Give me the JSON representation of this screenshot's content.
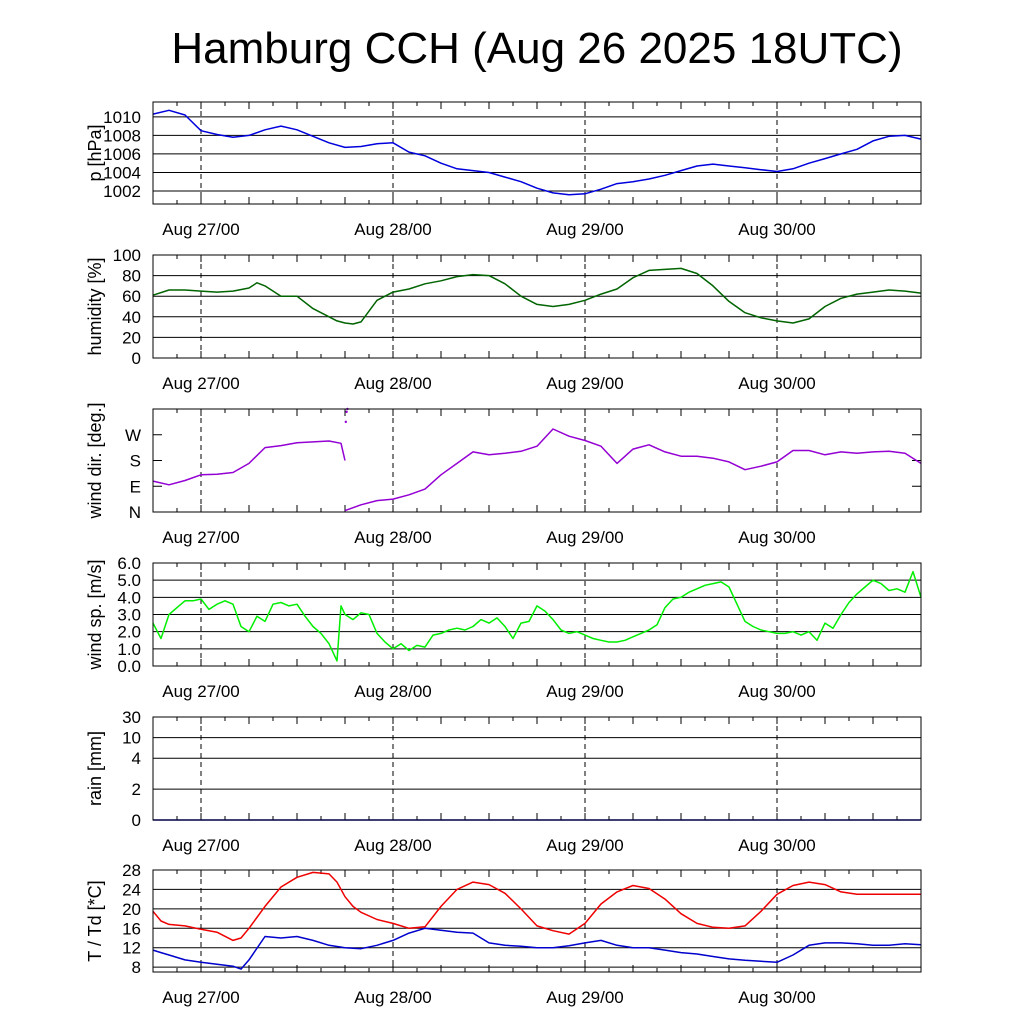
{
  "title": "Hamburg CCH (Aug 26 2025 18UTC)",
  "colors": {
    "pressure": "#0000dd",
    "humidity": "#006400",
    "wind_dir": "#9400d3",
    "wind_speed": "#00ee00",
    "rain": "#0000cc",
    "temperature": "#ee0000",
    "dewpoint": "#0000cc"
  },
  "chart_data": [
    {
      "type": "line",
      "ylabel": "p [hPa]",
      "ylim": [
        1000.6,
        1011.6
      ],
      "yticks": [
        "1002",
        "1004",
        "1006",
        "1008",
        "1010"
      ],
      "x_axis": {
        "start": "Aug 26 18UTC",
        "end": "Aug 30 18UTC",
        "unit": "hours",
        "range": [
          0,
          96
        ]
      },
      "xticks": [
        "Aug 27/00",
        "Aug 28/00",
        "Aug 29/00",
        "Aug 30/00"
      ],
      "grid": "horizontal solid, vertical dashed at midnight",
      "series": [
        {
          "x": [
            0,
            2,
            4,
            6,
            8,
            10,
            12,
            14,
            16,
            18,
            20,
            22,
            24,
            26,
            28,
            30,
            32,
            34,
            36,
            38,
            40,
            42,
            44,
            46,
            48,
            50,
            52,
            54,
            56,
            58,
            60,
            62,
            64,
            66,
            68,
            70,
            72,
            74,
            76,
            78,
            80,
            82,
            84,
            86,
            88,
            90,
            92,
            94,
            96
          ],
          "values": [
            1010.3,
            1010.7,
            1010.2,
            1008.5,
            1008.1,
            1007.8,
            1008.0,
            1008.6,
            1009.0,
            1008.6,
            1007.9,
            1007.2,
            1006.7,
            1006.8,
            1007.1,
            1007.2,
            1006.2,
            1005.8,
            1005.0,
            1004.4,
            1004.2,
            1004.0,
            1003.5,
            1003.0,
            1002.3,
            1001.8,
            1001.6,
            1001.7,
            1002.2,
            1002.8,
            1003.0,
            1003.3,
            1003.7,
            1004.2,
            1004.7,
            1004.9,
            1004.7,
            1004.5,
            1004.3,
            1004.1,
            1004.4,
            1005.0,
            1005.5,
            1006.0,
            1006.5,
            1007.4,
            1007.9,
            1008.0,
            1007.6
          ]
        }
      ]
    },
    {
      "type": "line",
      "ylabel": "humidity [%]",
      "ylim": [
        0,
        100
      ],
      "yticks": [
        "0",
        "20",
        "40",
        "60",
        "80",
        "100"
      ],
      "x_axis": {
        "start": "Aug 26 18UTC",
        "end": "Aug 30 18UTC",
        "unit": "hours",
        "range": [
          0,
          96
        ]
      },
      "xticks": [
        "Aug 27/00",
        "Aug 28/00",
        "Aug 29/00",
        "Aug 30/00"
      ],
      "series": [
        {
          "x": [
            0,
            2,
            4,
            6,
            8,
            10,
            12,
            13,
            14,
            16,
            18,
            20,
            22,
            23,
            24,
            25,
            26,
            28,
            30,
            32,
            34,
            36,
            38,
            40,
            42,
            44,
            46,
            48,
            50,
            52,
            54,
            56,
            58,
            60,
            62,
            64,
            66,
            68,
            70,
            72,
            74,
            76,
            78,
            80,
            82,
            84,
            86,
            88,
            90,
            92,
            94,
            96
          ],
          "values": [
            61,
            66,
            66,
            65,
            64,
            65,
            68,
            73,
            70,
            60,
            60,
            48,
            40,
            36,
            34,
            33,
            35,
            56,
            64,
            67,
            72,
            75,
            79,
            81,
            80,
            72,
            60,
            52,
            50,
            52,
            56,
            62,
            67,
            78,
            85,
            86,
            87,
            82,
            70,
            55,
            44,
            39,
            36,
            34,
            38,
            50,
            58,
            62,
            64,
            66,
            65,
            63
          ]
        }
      ]
    },
    {
      "type": "scatter",
      "ylabel": "wind dir. [deg.]",
      "ylim": [
        0,
        360
      ],
      "yticks": [
        "N",
        "E",
        "S",
        "W"
      ],
      "x_axis": {
        "start": "Aug 26 18UTC",
        "end": "Aug 30 18UTC",
        "unit": "hours",
        "range": [
          0,
          96
        ]
      },
      "xticks": [
        "Aug 27/00",
        "Aug 28/00",
        "Aug 29/00",
        "Aug 30/00"
      ],
      "series": [
        {
          "x": [
            0,
            2,
            4,
            6,
            8,
            10,
            12,
            14,
            16,
            18,
            20,
            22,
            23.5,
            24
          ],
          "values": [
            108,
            95,
            110,
            130,
            132,
            138,
            170,
            225,
            232,
            242,
            245,
            248,
            240,
            180
          ]
        },
        {
          "x": [
            24.1,
            24.2,
            24.3
          ],
          "values": [
            315,
            350,
            360
          ]
        },
        {
          "x": [
            24,
            26,
            28,
            30,
            32,
            34,
            36,
            38,
            40,
            42,
            44,
            46,
            48,
            50,
            52,
            54,
            56,
            58,
            60,
            62,
            64,
            66,
            68,
            70,
            72,
            74,
            76,
            78,
            80,
            82,
            84,
            86,
            88,
            90,
            92,
            94,
            96
          ],
          "values": [
            5,
            25,
            40,
            45,
            60,
            80,
            130,
            170,
            210,
            200,
            205,
            212,
            230,
            290,
            265,
            250,
            230,
            170,
            220,
            235,
            210,
            195,
            195,
            188,
            175,
            148,
            160,
            175,
            215,
            215,
            200,
            210,
            205,
            210,
            212,
            205,
            170
          ]
        }
      ]
    },
    {
      "type": "line",
      "ylabel": "wind sp. [m/s]",
      "ylim": [
        0,
        6
      ],
      "yticks": [
        "0.0",
        "1.0",
        "2.0",
        "3.0",
        "4.0",
        "5.0",
        "6.0"
      ],
      "x_axis": {
        "start": "Aug 26 18UTC",
        "end": "Aug 30 18UTC",
        "unit": "hours",
        "range": [
          0,
          96
        ]
      },
      "xticks": [
        "Aug 27/00",
        "Aug 28/00",
        "Aug 29/00",
        "Aug 30/00"
      ],
      "series": [
        {
          "x": [
            0,
            1,
            2,
            3,
            4,
            5,
            6,
            7,
            8,
            9,
            10,
            11,
            12,
            13,
            14,
            15,
            16,
            17,
            18,
            19,
            20,
            21,
            22,
            23,
            23.5,
            24,
            25,
            26,
            27,
            28,
            29,
            30,
            31,
            32,
            33,
            34,
            35,
            36,
            37,
            38,
            39,
            40,
            41,
            42,
            43,
            44,
            45,
            46,
            47,
            48,
            49,
            50,
            51,
            52,
            53,
            54,
            55,
            56,
            57,
            58,
            59,
            60,
            61,
            62,
            63,
            64,
            65,
            66,
            67,
            68,
            69,
            70,
            71,
            72,
            73,
            74,
            75,
            76,
            77,
            78,
            79,
            80,
            81,
            82,
            83,
            84,
            85,
            86,
            87,
            88,
            89,
            90,
            91,
            92,
            93,
            94,
            95,
            96
          ],
          "values": [
            2.5,
            1.6,
            3.0,
            3.4,
            3.8,
            3.8,
            3.9,
            3.3,
            3.6,
            3.8,
            3.6,
            2.3,
            2.0,
            2.9,
            2.6,
            3.6,
            3.7,
            3.5,
            3.6,
            2.9,
            2.3,
            1.9,
            1.3,
            0.3,
            3.5,
            3.0,
            2.7,
            3.1,
            3.0,
            1.9,
            1.4,
            1.0,
            1.3,
            0.9,
            1.2,
            1.1,
            1.8,
            1.9,
            2.1,
            2.2,
            2.1,
            2.3,
            2.7,
            2.5,
            2.8,
            2.3,
            1.6,
            2.5,
            2.6,
            3.5,
            3.2,
            2.7,
            2.1,
            1.9,
            2.0,
            1.8,
            1.6,
            1.5,
            1.4,
            1.4,
            1.5,
            1.7,
            1.9,
            2.1,
            2.4,
            3.4,
            3.9,
            4.0,
            4.3,
            4.5,
            4.7,
            4.8,
            4.9,
            4.6,
            3.6,
            2.6,
            2.3,
            2.1,
            2.0,
            1.9,
            1.9,
            2.0,
            1.8,
            2.0,
            1.5,
            2.5,
            2.2,
            3.0,
            3.7,
            4.2,
            4.6,
            5.0,
            4.8,
            4.4,
            4.5,
            4.3,
            5.5,
            4.0
          ]
        }
      ]
    },
    {
      "type": "line",
      "ylabel": "rain [mm]",
      "ylim": [
        0,
        30
      ],
      "yticks": [
        "0",
        "2",
        "4",
        "10",
        "30"
      ],
      "x_axis": {
        "start": "Aug 26 18UTC",
        "end": "Aug 30 18UTC",
        "unit": "hours",
        "range": [
          0,
          96
        ]
      },
      "xticks": [
        "Aug 27/00",
        "Aug 28/00",
        "Aug 29/00",
        "Aug 30/00"
      ],
      "series": [
        {
          "x": [
            0,
            96
          ],
          "values": [
            0,
            0
          ]
        }
      ]
    },
    {
      "type": "line",
      "ylabel": "T / Td [*C]",
      "ylim": [
        7,
        28
      ],
      "yticks": [
        "8",
        "12",
        "16",
        "20",
        "24",
        "28"
      ],
      "x_axis": {
        "start": "Aug 26 18UTC",
        "end": "Aug 30 18UTC",
        "unit": "hours",
        "range": [
          0,
          96
        ]
      },
      "xticks": [
        "Aug 27/00",
        "Aug 28/00",
        "Aug 29/00",
        "Aug 30/00"
      ],
      "series": [
        {
          "x": [
            0,
            1,
            2,
            4,
            6,
            8,
            10,
            11,
            12,
            14,
            16,
            18,
            20,
            22,
            23,
            24,
            25,
            26,
            28,
            30,
            32,
            34,
            36,
            38,
            40,
            42,
            44,
            46,
            48,
            50,
            52,
            54,
            56,
            58,
            60,
            62,
            64,
            66,
            68,
            70,
            72,
            74,
            76,
            78,
            80,
            82,
            84,
            86,
            88,
            90,
            92,
            94,
            96
          ],
          "values": [
            19.5,
            17.5,
            16.8,
            16.5,
            15.8,
            15.2,
            13.5,
            14.0,
            16.0,
            20.5,
            24.5,
            26.5,
            27.5,
            27.2,
            25.5,
            22.5,
            20.5,
            19.3,
            17.8,
            17.0,
            16.0,
            16.3,
            20.5,
            24.0,
            25.5,
            25.0,
            23.2,
            20.0,
            16.5,
            15.5,
            14.8,
            17.0,
            21.0,
            23.5,
            24.8,
            24.2,
            22.0,
            19.0,
            17.0,
            16.2,
            16.0,
            16.5,
            19.5,
            23.0,
            24.8,
            25.5,
            25.0,
            23.5,
            23.0,
            23.0,
            23.0,
            23.0,
            23.0
          ]
        },
        {
          "x": [
            0,
            1,
            2,
            4,
            6,
            8,
            10,
            11,
            12,
            14,
            16,
            18,
            20,
            22,
            24,
            26,
            28,
            30,
            32,
            34,
            36,
            38,
            40,
            42,
            44,
            46,
            48,
            50,
            52,
            54,
            56,
            58,
            60,
            62,
            64,
            66,
            68,
            70,
            72,
            74,
            76,
            78,
            80,
            82,
            84,
            86,
            88,
            90,
            92,
            94,
            96
          ],
          "values": [
            11.5,
            11.0,
            10.5,
            9.5,
            9.0,
            8.6,
            8.2,
            7.6,
            9.5,
            14.3,
            14.0,
            14.3,
            13.5,
            12.5,
            12.0,
            11.8,
            12.5,
            13.5,
            15.0,
            16.0,
            15.6,
            15.2,
            15.0,
            13.0,
            12.5,
            12.3,
            12.0,
            12.0,
            12.4,
            13.0,
            13.5,
            12.5,
            12.0,
            12.0,
            11.5,
            11.0,
            10.7,
            10.2,
            9.7,
            9.4,
            9.2,
            9.0,
            10.5,
            12.5,
            13.0,
            13.0,
            12.8,
            12.5,
            12.5,
            12.8,
            12.6
          ]
        }
      ]
    }
  ]
}
